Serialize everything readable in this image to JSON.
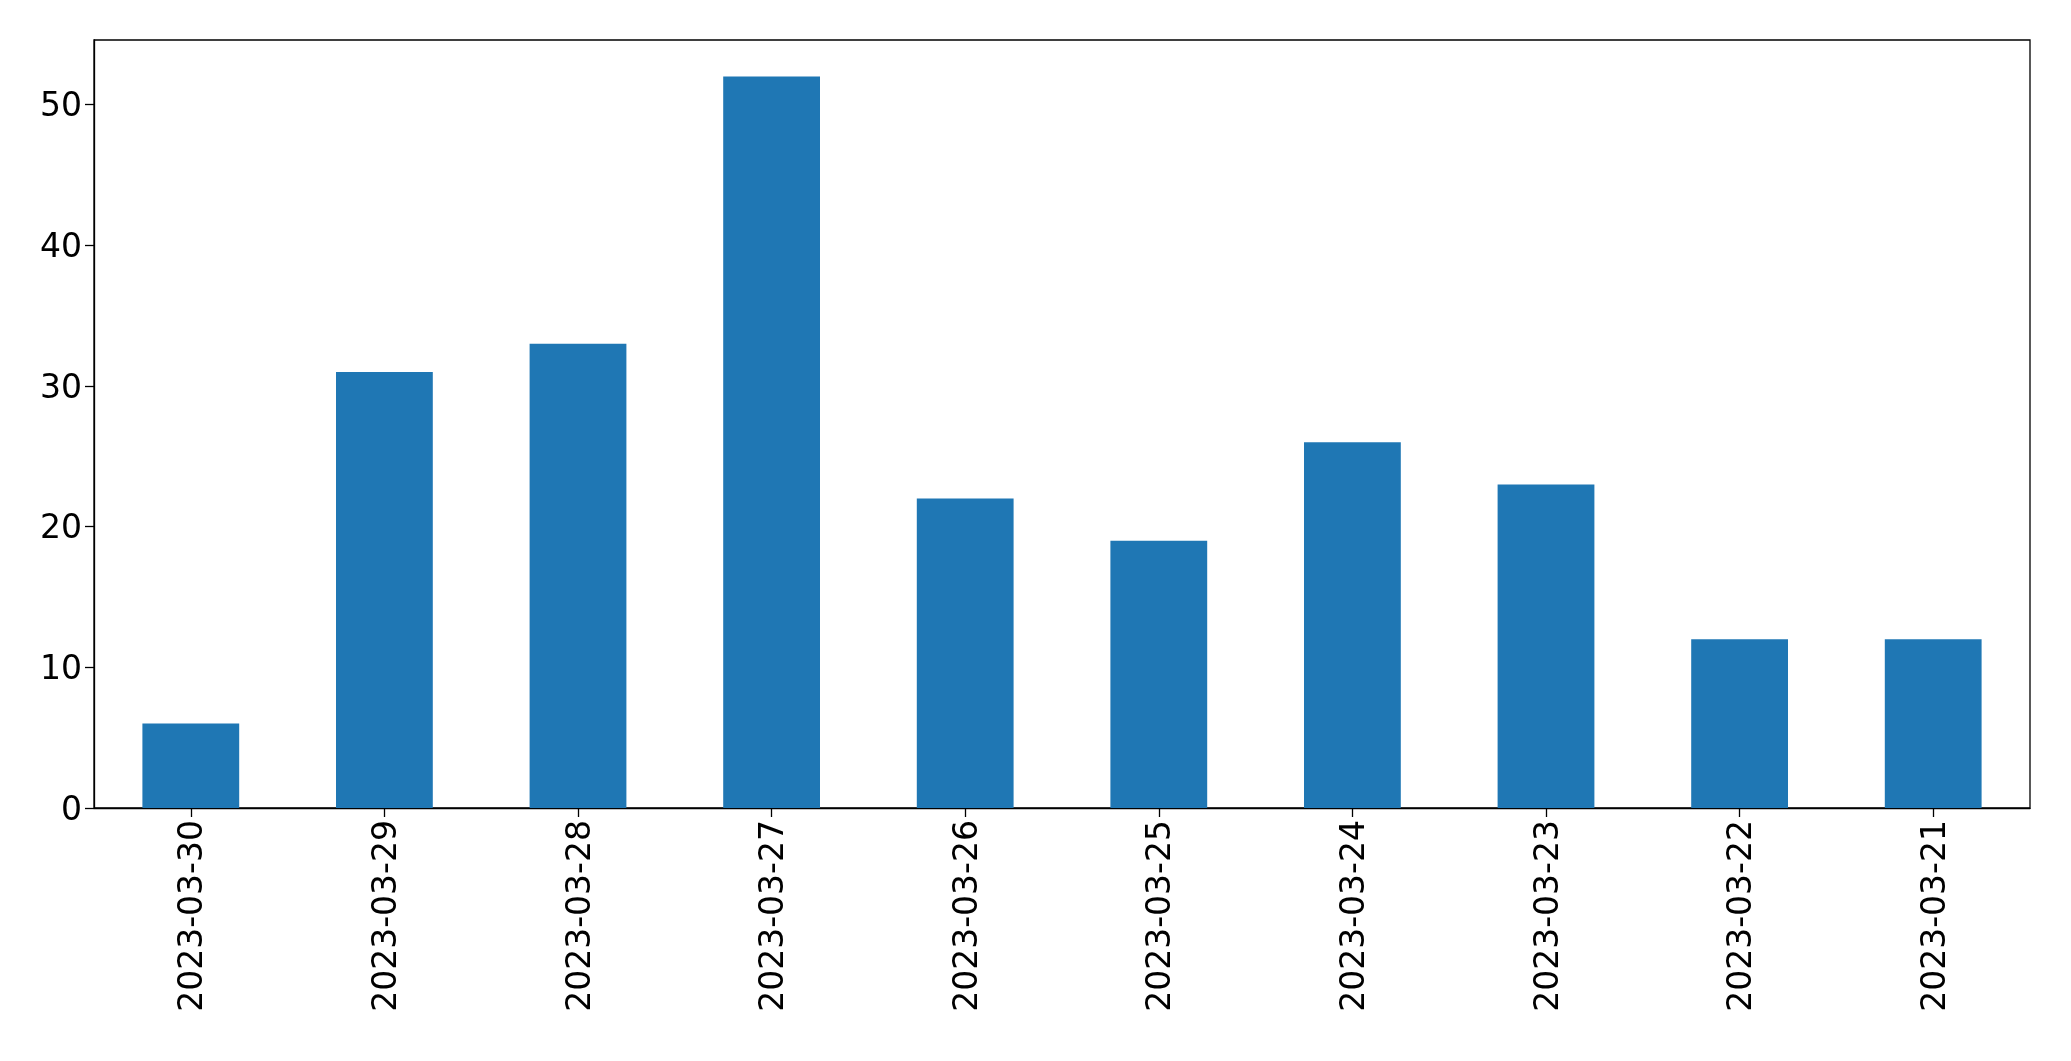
{
  "chart_data": {
    "type": "bar",
    "categories": [
      "2023-03-30",
      "2023-03-29",
      "2023-03-28",
      "2023-03-27",
      "2023-03-26",
      "2023-03-25",
      "2023-03-24",
      "2023-03-23",
      "2023-03-22",
      "2023-03-21"
    ],
    "values": [
      6,
      31,
      33,
      52,
      22,
      19,
      26,
      23,
      12,
      12
    ],
    "color": "#1f77b4",
    "ylim": [
      0,
      54.6
    ],
    "yticks": [
      0,
      10,
      20,
      30,
      40,
      50
    ],
    "grid": false
  }
}
